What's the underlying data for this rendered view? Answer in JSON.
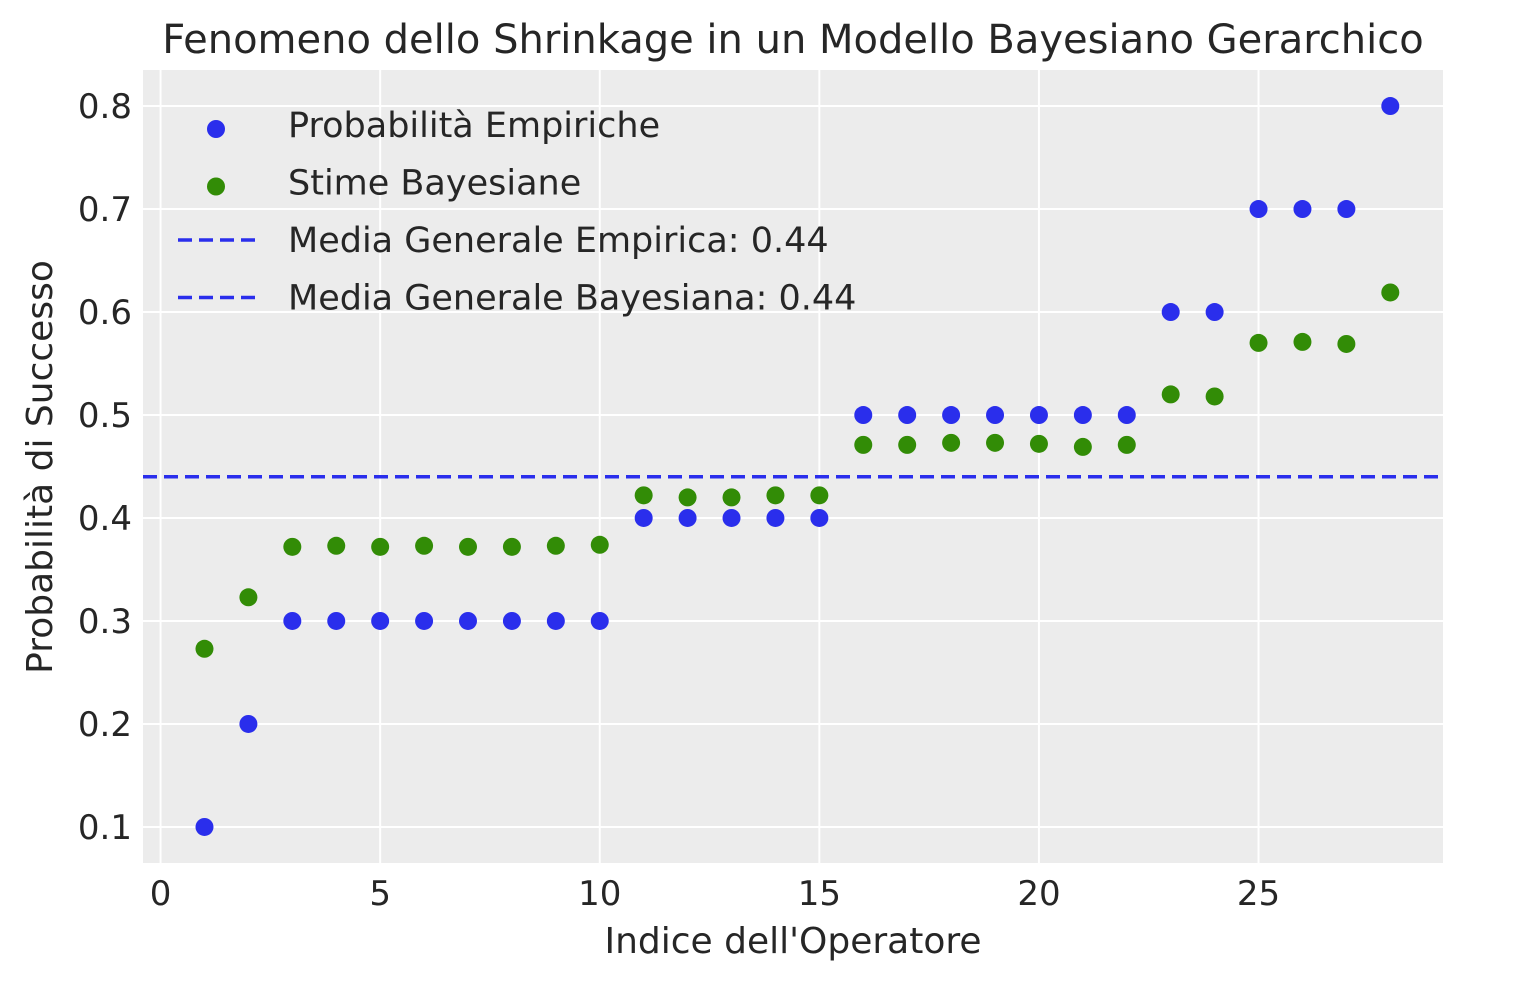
{
  "chart_data": {
    "type": "scatter",
    "title": "Fenomeno dello Shrinkage in un Modello Bayesiano Gerarchico",
    "xlabel": "Indice dell'Operatore",
    "ylabel": "Probabilità di Successo",
    "xlim": [
      -0.4,
      29.2
    ],
    "ylim": [
      0.065,
      0.835
    ],
    "xticks": [
      0,
      5,
      10,
      15,
      20,
      25
    ],
    "yticks": [
      0.1,
      0.2,
      0.3,
      0.4,
      0.5,
      0.6,
      0.7,
      0.8
    ],
    "xtick_labels": [
      "0",
      "5",
      "10",
      "15",
      "20",
      "25"
    ],
    "ytick_labels": [
      "0.1",
      "0.2",
      "0.3",
      "0.4",
      "0.5",
      "0.6",
      "0.7",
      "0.8"
    ],
    "grid": true,
    "background": "#ececec",
    "legend_position": "top-left",
    "x": [
      1,
      2,
      3,
      4,
      5,
      6,
      7,
      8,
      9,
      10,
      11,
      12,
      13,
      14,
      15,
      16,
      17,
      18,
      19,
      20,
      21,
      22,
      23,
      24,
      25,
      26,
      27,
      28
    ],
    "series": [
      {
        "name": "Probabilità Empiriche",
        "kind": "scatter",
        "color": "#2a2eec",
        "values": [
          0.1,
          0.2,
          0.3,
          0.3,
          0.3,
          0.3,
          0.3,
          0.3,
          0.3,
          0.3,
          0.4,
          0.4,
          0.4,
          0.4,
          0.4,
          0.5,
          0.5,
          0.5,
          0.5,
          0.5,
          0.5,
          0.5,
          0.6,
          0.6,
          0.7,
          0.7,
          0.7,
          0.8
        ]
      },
      {
        "name": "Stime Bayesiane",
        "kind": "scatter",
        "color": "#328c06",
        "values": [
          0.273,
          0.323,
          0.372,
          0.373,
          0.372,
          0.373,
          0.372,
          0.372,
          0.373,
          0.374,
          0.422,
          0.42,
          0.42,
          0.422,
          0.422,
          0.471,
          0.471,
          0.473,
          0.473,
          0.472,
          0.469,
          0.471,
          0.52,
          0.518,
          0.57,
          0.571,
          0.569,
          0.619
        ]
      }
    ],
    "hlines": [
      {
        "name": "Media Generale Empirica: 0.44",
        "y": 0.44,
        "color": "#2a2eec",
        "style": "dashed"
      },
      {
        "name": "Media Generale Bayesiana: 0.44",
        "y": 0.44,
        "color": "#2a2eec",
        "style": "dashed"
      }
    ]
  }
}
